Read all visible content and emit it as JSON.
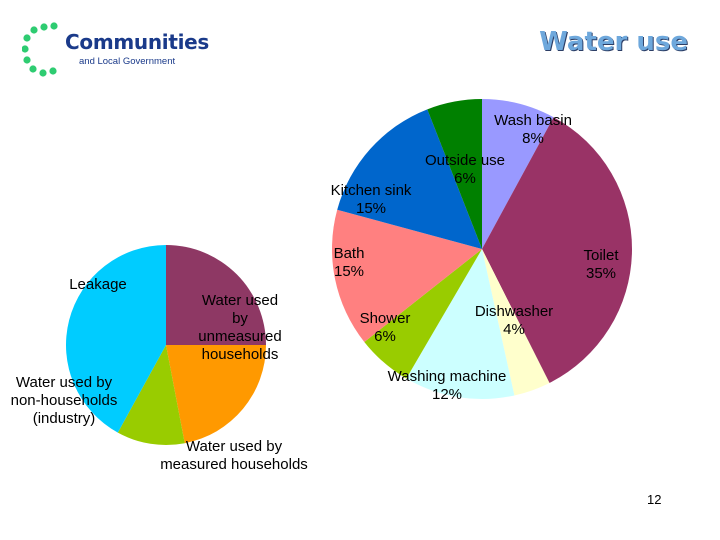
{
  "header": {
    "logo_title": "Communities",
    "logo_subtitle": "and Local Government",
    "title": "Water use"
  },
  "page_number": "12",
  "colors": {
    "title": "#6ea8dc",
    "logo": "#1a3a8a",
    "logo_dots": "#2ecc71"
  },
  "chart_data": [
    {
      "type": "pie",
      "title": "",
      "slices": [
        {
          "label": "Leakage",
          "share": 0.25,
          "color": "#8e3864"
        },
        {
          "label": "Water used by non-households (industry)",
          "share": 0.22,
          "color": "#ff9900"
        },
        {
          "label": "Water used by measured households",
          "share": 0.11,
          "color": "#99cc00"
        },
        {
          "label": "Water used by unmeasured households",
          "share": 0.42,
          "color": "#00ccff"
        }
      ]
    },
    {
      "type": "pie",
      "title": "",
      "slices": [
        {
          "label": "Wash basin",
          "value_label": "8%",
          "value": 8,
          "color": "#9999ff"
        },
        {
          "label": "Toilet",
          "value_label": "35%",
          "value": 35,
          "color": "#993366"
        },
        {
          "label": "Dishwasher",
          "value_label": "4%",
          "value": 4,
          "color": "#ffffcc"
        },
        {
          "label": "Washing machine",
          "value_label": "12%",
          "value": 12,
          "color": "#ccffff"
        },
        {
          "label": "Shower",
          "value_label": "6%",
          "value": 6,
          "color": "#99cc00"
        },
        {
          "label": "Bath",
          "value_label": "15%",
          "value": 15,
          "color": "#ff8080"
        },
        {
          "label": "Kitchen sink",
          "value_label": "15%",
          "value": 15,
          "color": "#0066cc"
        },
        {
          "label": "Outside use",
          "value_label": "6%",
          "value": 6,
          "color": "#008000"
        }
      ]
    }
  ]
}
